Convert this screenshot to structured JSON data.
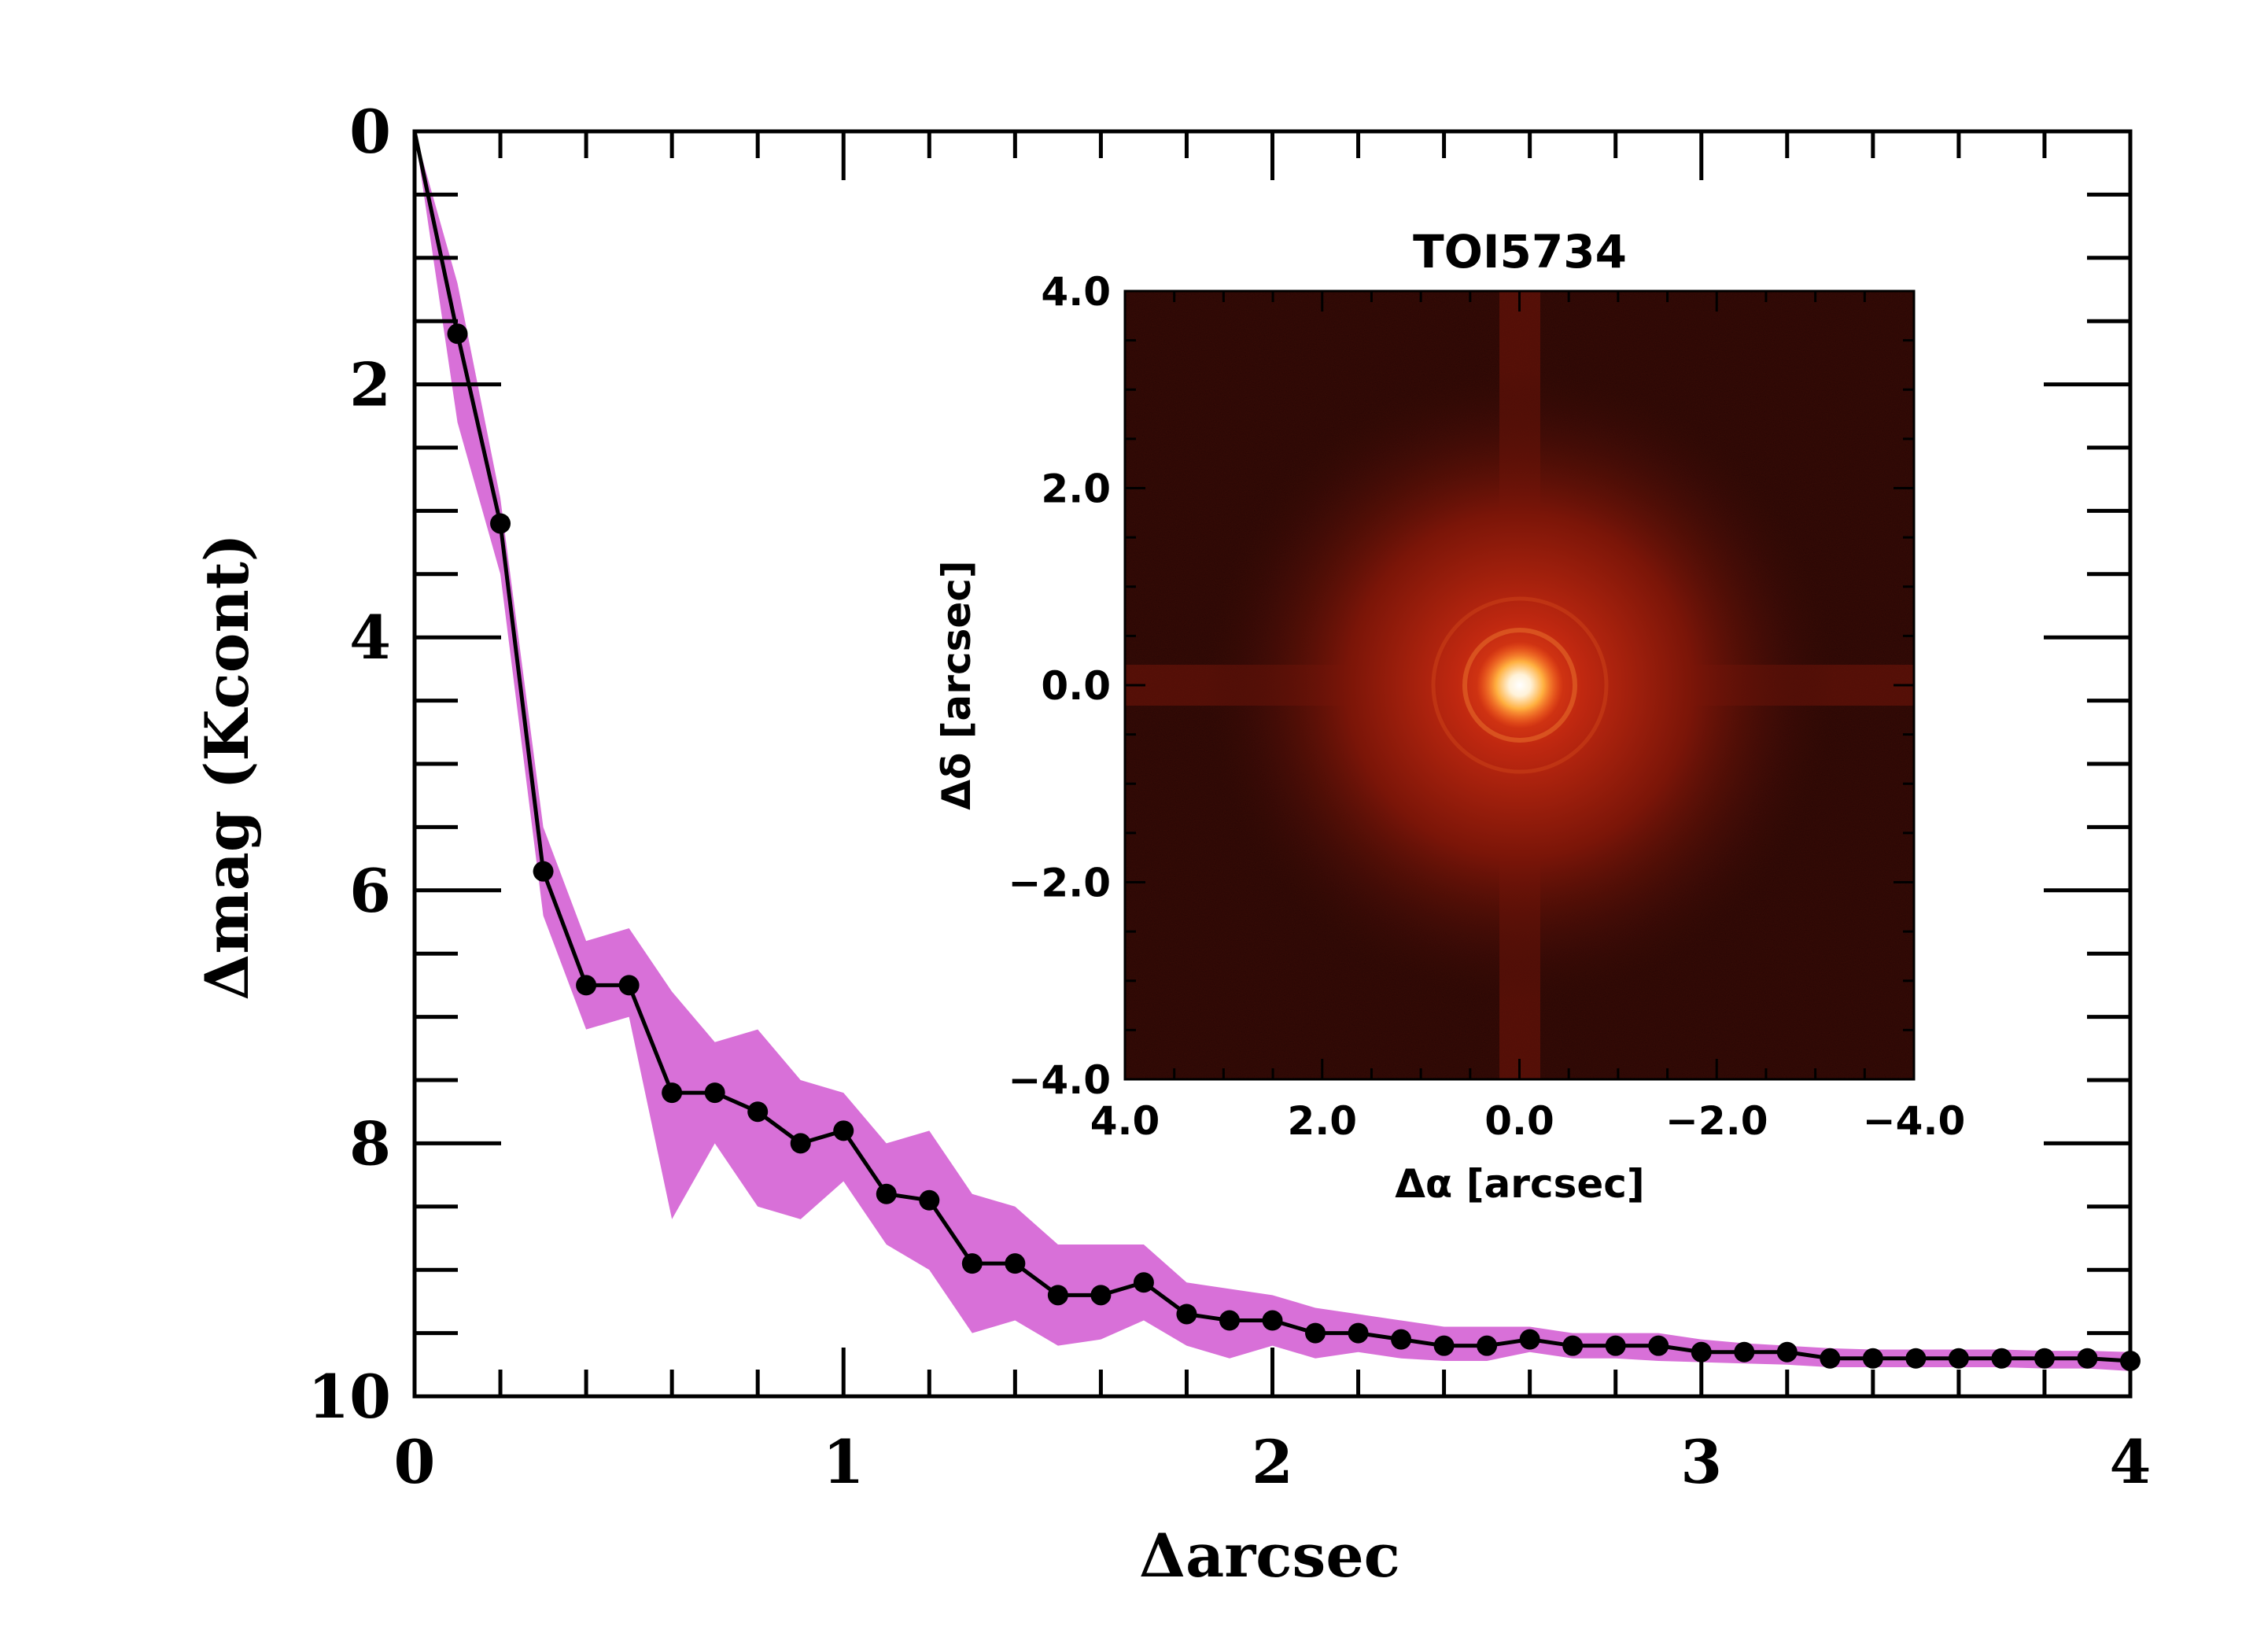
{
  "chart_data": [
    {
      "type": "line",
      "xlabel": "Δarcsec",
      "ylabel": "Δmag (Kcont)",
      "xlim": [
        0,
        4
      ],
      "ylim": [
        0,
        10
      ],
      "y_inverted": true,
      "x_ticks": [
        "0",
        "1",
        "2",
        "3",
        "4"
      ],
      "y_ticks": [
        "0",
        "2",
        "4",
        "6",
        "8",
        "10"
      ],
      "colors": {
        "line": "#000000",
        "band": "#d870d8"
      },
      "grid": false,
      "series": [
        {
          "x": [
            0.1,
            0.2,
            0.3,
            0.4,
            0.5,
            0.6,
            0.7,
            0.8,
            0.9,
            1.0,
            1.1,
            1.2,
            1.3,
            1.4,
            1.5,
            1.6,
            1.7,
            1.8,
            1.9,
            2.0,
            2.1,
            2.2,
            2.3,
            2.4,
            2.5,
            2.6,
            2.7,
            2.8,
            2.9,
            3.0,
            3.1,
            3.2,
            3.3,
            3.4,
            3.5,
            3.6,
            3.7,
            3.8,
            3.9,
            4.0
          ],
          "values": [
            1.6,
            3.1,
            5.85,
            6.75,
            6.75,
            7.6,
            7.6,
            7.75,
            8.0,
            7.9,
            8.4,
            8.45,
            8.95,
            8.95,
            9.2,
            9.2,
            9.1,
            9.35,
            9.4,
            9.4,
            9.5,
            9.5,
            9.55,
            9.6,
            9.6,
            9.55,
            9.6,
            9.6,
            9.6,
            9.65,
            9.65,
            9.65,
            9.7,
            9.7,
            9.7,
            9.7,
            9.7,
            9.7,
            9.7,
            9.72
          ],
          "band_upper": [
            1.2,
            2.9,
            5.5,
            6.4,
            6.3,
            6.8,
            7.2,
            7.1,
            7.5,
            7.6,
            8.0,
            7.9,
            8.4,
            8.5,
            8.8,
            8.8,
            8.8,
            9.1,
            9.15,
            9.2,
            9.3,
            9.35,
            9.4,
            9.45,
            9.45,
            9.45,
            9.5,
            9.5,
            9.5,
            9.55,
            9.58,
            9.6,
            9.62,
            9.63,
            9.63,
            9.63,
            9.63,
            9.64,
            9.64,
            9.65
          ],
          "band_lower": [
            2.3,
            3.5,
            6.2,
            7.1,
            7.0,
            8.6,
            8.0,
            8.5,
            8.6,
            8.3,
            8.8,
            9.0,
            9.5,
            9.4,
            9.6,
            9.55,
            9.4,
            9.6,
            9.7,
            9.6,
            9.7,
            9.65,
            9.7,
            9.72,
            9.72,
            9.65,
            9.7,
            9.7,
            9.72,
            9.73,
            9.74,
            9.75,
            9.77,
            9.77,
            9.77,
            9.77,
            9.77,
            9.78,
            9.78,
            9.8
          ]
        }
      ]
    },
    {
      "type": "heatmap",
      "title": "TOI5734",
      "xlabel": "Δα [arcsec]",
      "ylabel": "Δδ [arcsec]",
      "xlim": [
        4.0,
        -4.0
      ],
      "ylim": [
        -4.0,
        4.0
      ],
      "x_ticks": [
        "4.0",
        "2.0",
        "0.0",
        "−2.0",
        "−4.0"
      ],
      "y_ticks": [
        "4.0",
        "2.0",
        "0.0",
        "−2.0",
        "−4.0"
      ],
      "colors": {
        "background": "#3a0b06",
        "mid": "#a82010",
        "peak": "#fff2d8"
      },
      "source_position": [
        0.0,
        0.0
      ]
    }
  ]
}
